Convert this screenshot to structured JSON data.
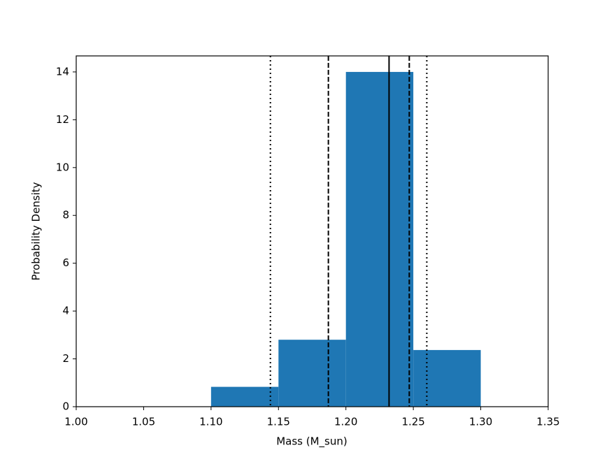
{
  "chart_data": {
    "type": "histogram",
    "xlabel": "Mass (M_sun)",
    "ylabel": "Probability Density",
    "bins": [
      1.1,
      1.15,
      1.2,
      1.25,
      1.3
    ],
    "values": [
      0.83,
      2.8,
      14,
      2.37
    ],
    "color": "#1f77b4",
    "xlim": [
      1.0,
      1.35
    ],
    "xticks": [
      {
        "value": 1.0,
        "label": "1.00"
      },
      {
        "value": 1.05,
        "label": "1.05"
      },
      {
        "value": 1.1,
        "label": "1.10"
      },
      {
        "value": 1.15,
        "label": "1.15"
      },
      {
        "value": 1.2,
        "label": "1.20"
      },
      {
        "value": 1.25,
        "label": "1.25"
      },
      {
        "value": 1.3,
        "label": "1.30"
      },
      {
        "value": 1.35,
        "label": "1.35"
      }
    ],
    "ylim": [
      0,
      14.67
    ],
    "yticks": [
      0,
      2,
      4,
      6,
      8,
      10,
      12,
      14
    ],
    "vlines": [
      {
        "x": 1.144,
        "style": "dotted"
      },
      {
        "x": 1.187,
        "style": "dashed"
      },
      {
        "x": 1.232,
        "style": "solid"
      },
      {
        "x": 1.247,
        "style": "dashed"
      },
      {
        "x": 1.26,
        "style": "dotted"
      }
    ],
    "grid": false
  }
}
